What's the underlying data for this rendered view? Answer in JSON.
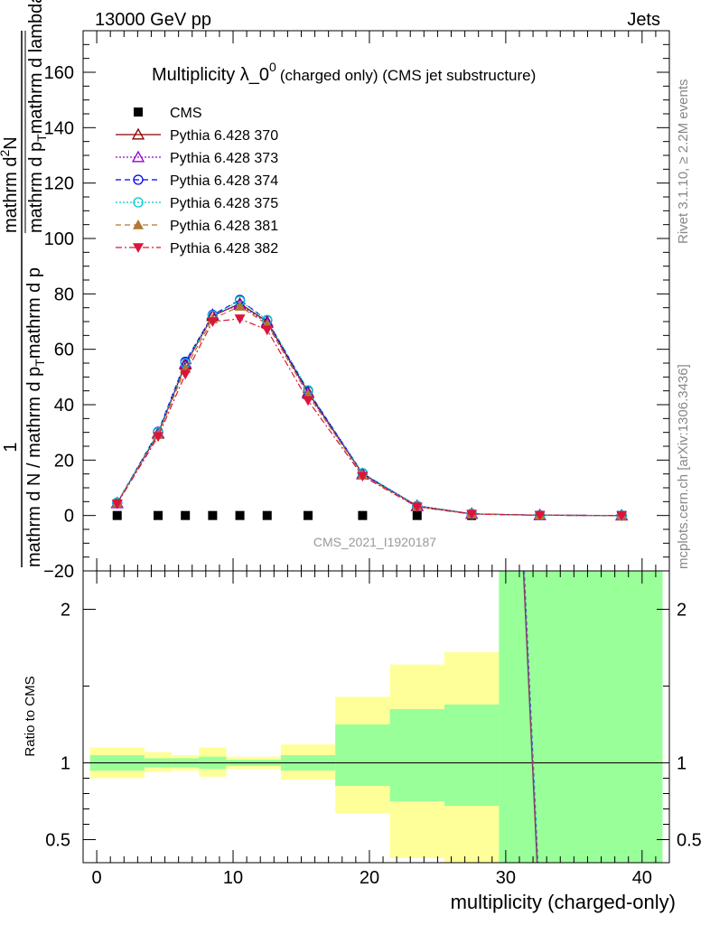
{
  "header": {
    "left": "13000 GeV pp",
    "right": "Jets"
  },
  "side": {
    "rivet": "Rivet 3.1.10, ≥ 2.2M events",
    "mcplots": "mcplots.cern.ch [arXiv:1306.3436]"
  },
  "chart_data": [
    {
      "type": "line",
      "title": "Multiplicity λ_0",
      "title_sup": "0",
      "title_suffix": "(charged only) (CMS jet substructure)",
      "ylabel_num": "1",
      "ylabel_den": "mathrm d N / mathrm d p",
      "ylabel_den_sub": "T",
      "ylabel_den_tail": "mathrm d p",
      "ylabel_upper_num": "mathrm d",
      "ylabel_upper_sup": "2",
      "ylabel_upper_numtail": "N",
      "ylabel_upper_den": "mathrm d p",
      "ylabel_upper_densub": "T",
      "ylabel_upper_dentail": "mathrm d lambda",
      "watermark": "CMS_2021_I1920187",
      "xlim": [
        -1,
        42
      ],
      "ylim": [
        -20,
        175
      ],
      "yticks": [
        -20,
        0,
        20,
        40,
        60,
        80,
        100,
        120,
        140,
        160
      ],
      "grid": false,
      "legend_position": "top-left",
      "x": [
        1.5,
        4.5,
        6.5,
        8.5,
        10.5,
        12.5,
        15.5,
        19.5,
        23.5,
        27.5,
        32.5,
        38.5
      ],
      "series": [
        {
          "name": "CMS",
          "color": "#000000",
          "marker": "square-filled",
          "line": "none",
          "values": [
            0,
            0,
            0,
            0,
            0,
            0,
            0,
            0,
            0,
            0,
            0,
            0
          ]
        },
        {
          "name": "Pythia 6.428 370",
          "color": "#8b0000",
          "marker": "triangle-open",
          "line": "solid",
          "values": [
            4.5,
            29.5,
            54.5,
            72,
            76.5,
            70,
            44.5,
            15,
            3.5,
            0.6,
            0.1,
            0
          ]
        },
        {
          "name": "Pythia 6.428 373",
          "color": "#9400d3",
          "marker": "triangle-open",
          "line": "dotted",
          "values": [
            4.4,
            29.7,
            55,
            72.5,
            76,
            69.5,
            44,
            14.8,
            3.3,
            0.6,
            0.1,
            0
          ]
        },
        {
          "name": "Pythia 6.428 374",
          "color": "#0000ee",
          "marker": "circle-open",
          "line": "dashed",
          "values": [
            4.6,
            30.2,
            55.5,
            72.4,
            77.8,
            70.5,
            45,
            15.2,
            3.4,
            0.6,
            0.1,
            0
          ]
        },
        {
          "name": "Pythia 6.428 375",
          "color": "#00c8c8",
          "marker": "circle-open",
          "line": "dotted",
          "values": [
            4.7,
            30,
            55,
            72.2,
            77.5,
            70.6,
            45.2,
            15.3,
            3.5,
            0.6,
            0.1,
            0
          ]
        },
        {
          "name": "Pythia 6.428 381",
          "color": "#b07830",
          "marker": "triangle-filled",
          "line": "dashed",
          "values": [
            4.5,
            29.2,
            53,
            71,
            75.5,
            69,
            43.5,
            14.6,
            3.2,
            0.5,
            0.1,
            0
          ]
        },
        {
          "name": "Pythia 6.428 382",
          "color": "#dc143c",
          "marker": "triangle-down-filled",
          "line": "dashdot",
          "values": [
            4.2,
            28.5,
            51,
            70,
            71,
            67,
            41.5,
            14.2,
            3.1,
            0.5,
            0.1,
            0
          ]
        }
      ]
    },
    {
      "type": "area",
      "ylabel": "Ratio to CMS",
      "xlabel": "multiplicity (charged-only)",
      "xlim": [
        -1,
        42
      ],
      "ylim": [
        0.35,
        2.25
      ],
      "yticks": [
        0.5,
        1,
        2
      ],
      "ytick_labels": [
        "0.5",
        "1",
        "2"
      ],
      "xticks": [
        0,
        10,
        20,
        30,
        40
      ],
      "xtick_labels": [
        "0",
        "10",
        "20",
        "30",
        "40"
      ],
      "reference_line": 1,
      "band_colors": {
        "stat": "#99ff99",
        "total": "#ffff99"
      },
      "bins": [
        {
          "lo": -0.5,
          "hi": 3.5,
          "stat": [
            0.95,
            1.05
          ],
          "total": [
            0.9,
            1.1
          ]
        },
        {
          "lo": 3.5,
          "hi": 5.5,
          "stat": [
            0.97,
            1.03
          ],
          "total": [
            0.94,
            1.07
          ]
        },
        {
          "lo": 5.5,
          "hi": 7.5,
          "stat": [
            0.97,
            1.03
          ],
          "total": [
            0.95,
            1.05
          ]
        },
        {
          "lo": 7.5,
          "hi": 9.5,
          "stat": [
            0.96,
            1.04
          ],
          "total": [
            0.91,
            1.1
          ]
        },
        {
          "lo": 9.5,
          "hi": 11.5,
          "stat": [
            0.98,
            1.02
          ],
          "total": [
            0.96,
            1.04
          ]
        },
        {
          "lo": 11.5,
          "hi": 13.5,
          "stat": [
            0.98,
            1.02
          ],
          "total": [
            0.96,
            1.04
          ]
        },
        {
          "lo": 13.5,
          "hi": 17.5,
          "stat": [
            0.95,
            1.05
          ],
          "total": [
            0.89,
            1.12
          ]
        },
        {
          "lo": 17.5,
          "hi": 21.5,
          "stat": [
            0.85,
            1.25
          ],
          "total": [
            0.67,
            1.43
          ]
        },
        {
          "lo": 21.5,
          "hi": 25.5,
          "stat": [
            0.75,
            1.35
          ],
          "total": [
            0.38,
            1.64
          ]
        },
        {
          "lo": 25.5,
          "hi": 29.5,
          "stat": [
            0.72,
            1.38
          ],
          "total": [
            0.35,
            1.72
          ]
        },
        {
          "lo": 29.5,
          "hi": 41.5,
          "stat": [
            0.35,
            2.25
          ],
          "total": [
            0.35,
            2.25
          ]
        }
      ],
      "ratio_line": {
        "color": "#8b3a62",
        "x": [
          31.3,
          32.3
        ],
        "y": [
          2.25,
          0.35
        ]
      }
    }
  ]
}
